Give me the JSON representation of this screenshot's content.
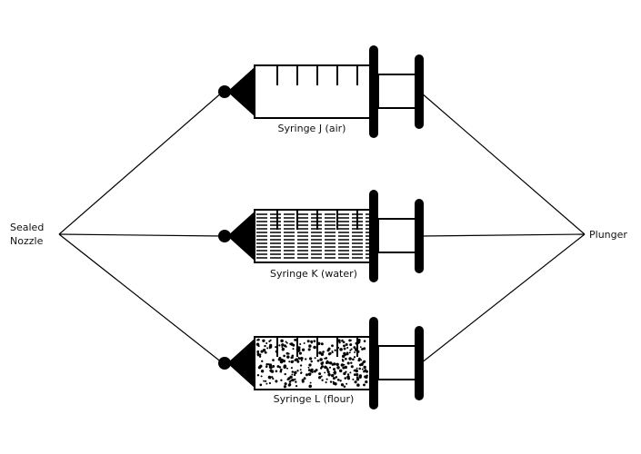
{
  "labels": {
    "sealed_nozzle_line1": "Sealed",
    "sealed_nozzle_line2": "Nozzle",
    "plunger": "Plunger"
  },
  "syringes": [
    {
      "id": "J",
      "caption": "Syringe J (air)",
      "contents": "air"
    },
    {
      "id": "K",
      "caption": "Syringe K (water)",
      "contents": "water"
    },
    {
      "id": "L",
      "caption": "Syringe L (flour)",
      "contents": "flour"
    }
  ],
  "colors": {
    "ink": "#000000",
    "background": "#ffffff"
  }
}
